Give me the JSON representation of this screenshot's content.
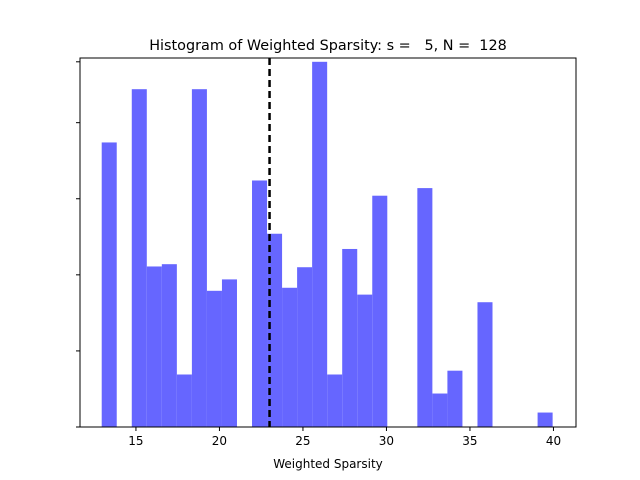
{
  "chart_data": {
    "type": "bar",
    "title": "Histogram of Weighted Sparsity: s =   5, N =  128",
    "xlabel": "Weighted Sparsity",
    "ylabel": "",
    "xlim": [
      11.65,
      41.35
    ],
    "ylim": [
      0,
      0.0485
    ],
    "x_ticks": [
      15,
      20,
      25,
      30,
      35,
      40
    ],
    "y_ticks": [
      0,
      0.01,
      0.02,
      0.03,
      0.04,
      0.048
    ],
    "y_tick_labels_visible": false,
    "bar_color": "#6666ff",
    "bar_width": 0.9,
    "bins": [
      {
        "x": 13.4,
        "value": 0.0374
      },
      {
        "x": 14.3,
        "value": 0
      },
      {
        "x": 15.2,
        "value": 0.0444
      },
      {
        "x": 16.1,
        "value": 0.0211
      },
      {
        "x": 17.0,
        "value": 0.0214
      },
      {
        "x": 17.9,
        "value": 0.0069
      },
      {
        "x": 18.8,
        "value": 0.0444
      },
      {
        "x": 19.7,
        "value": 0.0179
      },
      {
        "x": 20.6,
        "value": 0.0194
      },
      {
        "x": 21.5,
        "value": 0
      },
      {
        "x": 22.4,
        "value": 0.0324
      },
      {
        "x": 23.3,
        "value": 0.0254
      },
      {
        "x": 24.2,
        "value": 0.0183
      },
      {
        "x": 25.1,
        "value": 0.021
      },
      {
        "x": 26.0,
        "value": 0.048
      },
      {
        "x": 26.9,
        "value": 0.0069
      },
      {
        "x": 27.8,
        "value": 0.0234
      },
      {
        "x": 28.7,
        "value": 0.0174
      },
      {
        "x": 29.6,
        "value": 0.0304
      },
      {
        "x": 30.5,
        "value": 0
      },
      {
        "x": 31.4,
        "value": 0
      },
      {
        "x": 32.3,
        "value": 0.0314
      },
      {
        "x": 33.2,
        "value": 0.0044
      },
      {
        "x": 34.1,
        "value": 0.0074
      },
      {
        "x": 35.0,
        "value": 0
      },
      {
        "x": 35.9,
        "value": 0.0164
      },
      {
        "x": 36.8,
        "value": 0
      },
      {
        "x": 37.7,
        "value": 0
      },
      {
        "x": 38.6,
        "value": 0
      },
      {
        "x": 39.5,
        "value": 0.0019
      }
    ],
    "vline": {
      "x": 23.0,
      "style": "dashed",
      "color": "#000000"
    }
  }
}
